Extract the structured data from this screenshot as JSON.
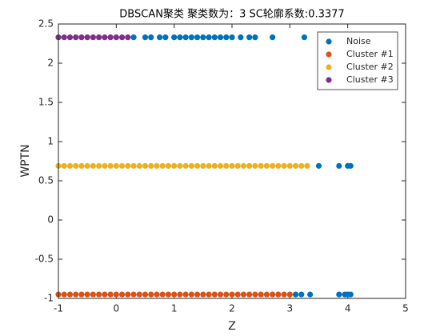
{
  "chart_data": {
    "type": "scatter",
    "title": "DBSCAN聚类  聚类数为：3  SC轮廓系数:0.3377",
    "x_label": "Z",
    "y_label": "WPTN",
    "xlim": [
      -1,
      5
    ],
    "ylim": [
      -1,
      2.5
    ],
    "xticks": [
      -1,
      0,
      1,
      2,
      3,
      4,
      5
    ],
    "yticks": [
      -1,
      -0.5,
      0,
      0.5,
      1,
      1.5,
      2,
      2.5
    ],
    "grid": false,
    "legend_position": "upper-right",
    "series": [
      {
        "name": "Noise",
        "color": "#0072BD",
        "x": [
          0.3,
          0.5,
          0.6,
          0.75,
          0.85,
          1.0,
          1.1,
          1.2,
          1.3,
          1.4,
          1.5,
          1.6,
          1.7,
          1.8,
          1.9,
          2.0,
          2.15,
          2.3,
          2.4,
          2.7,
          3.25,
          3.5,
          3.85,
          4.0,
          4.05,
          3.1,
          3.2,
          3.35,
          3.85,
          3.95,
          4.0,
          4.05
        ],
        "y": [
          2.33,
          2.33,
          2.33,
          2.33,
          2.33,
          2.33,
          2.33,
          2.33,
          2.33,
          2.33,
          2.33,
          2.33,
          2.33,
          2.33,
          2.33,
          2.33,
          2.33,
          2.33,
          2.33,
          2.33,
          2.33,
          0.69,
          0.69,
          0.69,
          0.69,
          -0.95,
          -0.95,
          -0.95,
          -0.95,
          -0.95,
          -0.95,
          -0.95
        ]
      },
      {
        "name": "Cluster #1",
        "color": "#D95319",
        "x": [
          -1,
          -0.9,
          -0.8,
          -0.7,
          -0.6,
          -0.5,
          -0.4,
          -0.3,
          -0.2,
          -0.1,
          0,
          0.1,
          0.2,
          0.3,
          0.4,
          0.5,
          0.6,
          0.7,
          0.8,
          0.9,
          1,
          1.1,
          1.2,
          1.3,
          1.4,
          1.5,
          1.6,
          1.7,
          1.8,
          1.9,
          2,
          2.1,
          2.2,
          2.3,
          2.4,
          2.5,
          2.6,
          2.7,
          2.8,
          2.9,
          3
        ],
        "y": [
          -0.95,
          -0.95,
          -0.95,
          -0.95,
          -0.95,
          -0.95,
          -0.95,
          -0.95,
          -0.95,
          -0.95,
          -0.95,
          -0.95,
          -0.95,
          -0.95,
          -0.95,
          -0.95,
          -0.95,
          -0.95,
          -0.95,
          -0.95,
          -0.95,
          -0.95,
          -0.95,
          -0.95,
          -0.95,
          -0.95,
          -0.95,
          -0.95,
          -0.95,
          -0.95,
          -0.95,
          -0.95,
          -0.95,
          -0.95,
          -0.95,
          -0.95,
          -0.95,
          -0.95,
          -0.95,
          -0.95,
          -0.95
        ]
      },
      {
        "name": "Cluster #2",
        "color": "#EDB120",
        "x": [
          -1,
          -0.9,
          -0.8,
          -0.7,
          -0.6,
          -0.5,
          -0.4,
          -0.3,
          -0.2,
          -0.1,
          0,
          0.1,
          0.2,
          0.3,
          0.4,
          0.5,
          0.6,
          0.7,
          0.8,
          0.9,
          1,
          1.1,
          1.2,
          1.3,
          1.4,
          1.5,
          1.6,
          1.7,
          1.8,
          1.9,
          2,
          2.1,
          2.2,
          2.3,
          2.4,
          2.5,
          2.6,
          2.7,
          2.8,
          2.9,
          3,
          3.1,
          3.2,
          3.3
        ],
        "y": [
          0.69,
          0.69,
          0.69,
          0.69,
          0.69,
          0.69,
          0.69,
          0.69,
          0.69,
          0.69,
          0.69,
          0.69,
          0.69,
          0.69,
          0.69,
          0.69,
          0.69,
          0.69,
          0.69,
          0.69,
          0.69,
          0.69,
          0.69,
          0.69,
          0.69,
          0.69,
          0.69,
          0.69,
          0.69,
          0.69,
          0.69,
          0.69,
          0.69,
          0.69,
          0.69,
          0.69,
          0.69,
          0.69,
          0.69,
          0.69,
          0.69,
          0.69,
          0.69,
          0.69
        ]
      },
      {
        "name": "Cluster #3",
        "color": "#7E2F8E",
        "x": [
          -1,
          -0.9,
          -0.8,
          -0.7,
          -0.6,
          -0.5,
          -0.4,
          -0.3,
          -0.2,
          -0.1,
          0,
          0.1,
          0.2
        ],
        "y": [
          2.33,
          2.33,
          2.33,
          2.33,
          2.33,
          2.33,
          2.33,
          2.33,
          2.33,
          2.33,
          2.33,
          2.33,
          2.33
        ]
      }
    ]
  }
}
